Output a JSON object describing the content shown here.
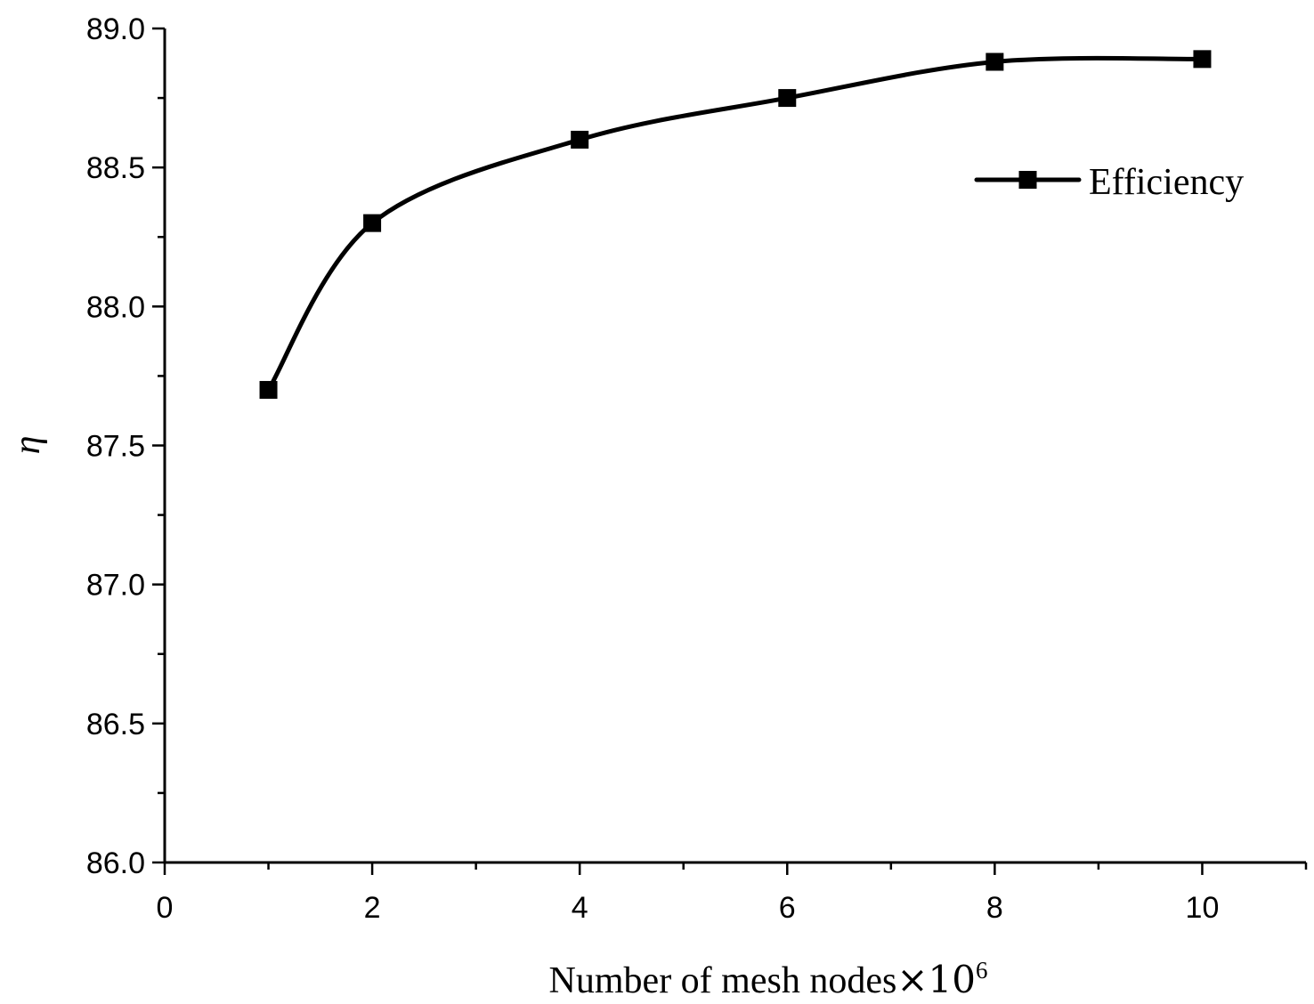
{
  "chart_data": {
    "type": "line",
    "title": "",
    "xlabel": "Number of mesh nodes",
    "xlabel_unit_base": "×10",
    "xlabel_unit_exp": "6",
    "ylabel": "η",
    "xlim": [
      0,
      11
    ],
    "ylim": [
      86.0,
      89.0
    ],
    "x_ticks": [
      "0",
      "2",
      "4",
      "6",
      "8",
      "10"
    ],
    "y_ticks": [
      "86.0",
      "86.5",
      "87.0",
      "87.5",
      "88.0",
      "88.5",
      "89.0"
    ],
    "grid": false,
    "legend_position": "top-right",
    "series": [
      {
        "name": "Efficiency",
        "marker": "square",
        "color": "#000000",
        "x": [
          1,
          2,
          4,
          6,
          8,
          10
        ],
        "y": [
          87.7,
          88.3,
          88.6,
          88.75,
          88.88,
          88.89
        ]
      }
    ]
  }
}
